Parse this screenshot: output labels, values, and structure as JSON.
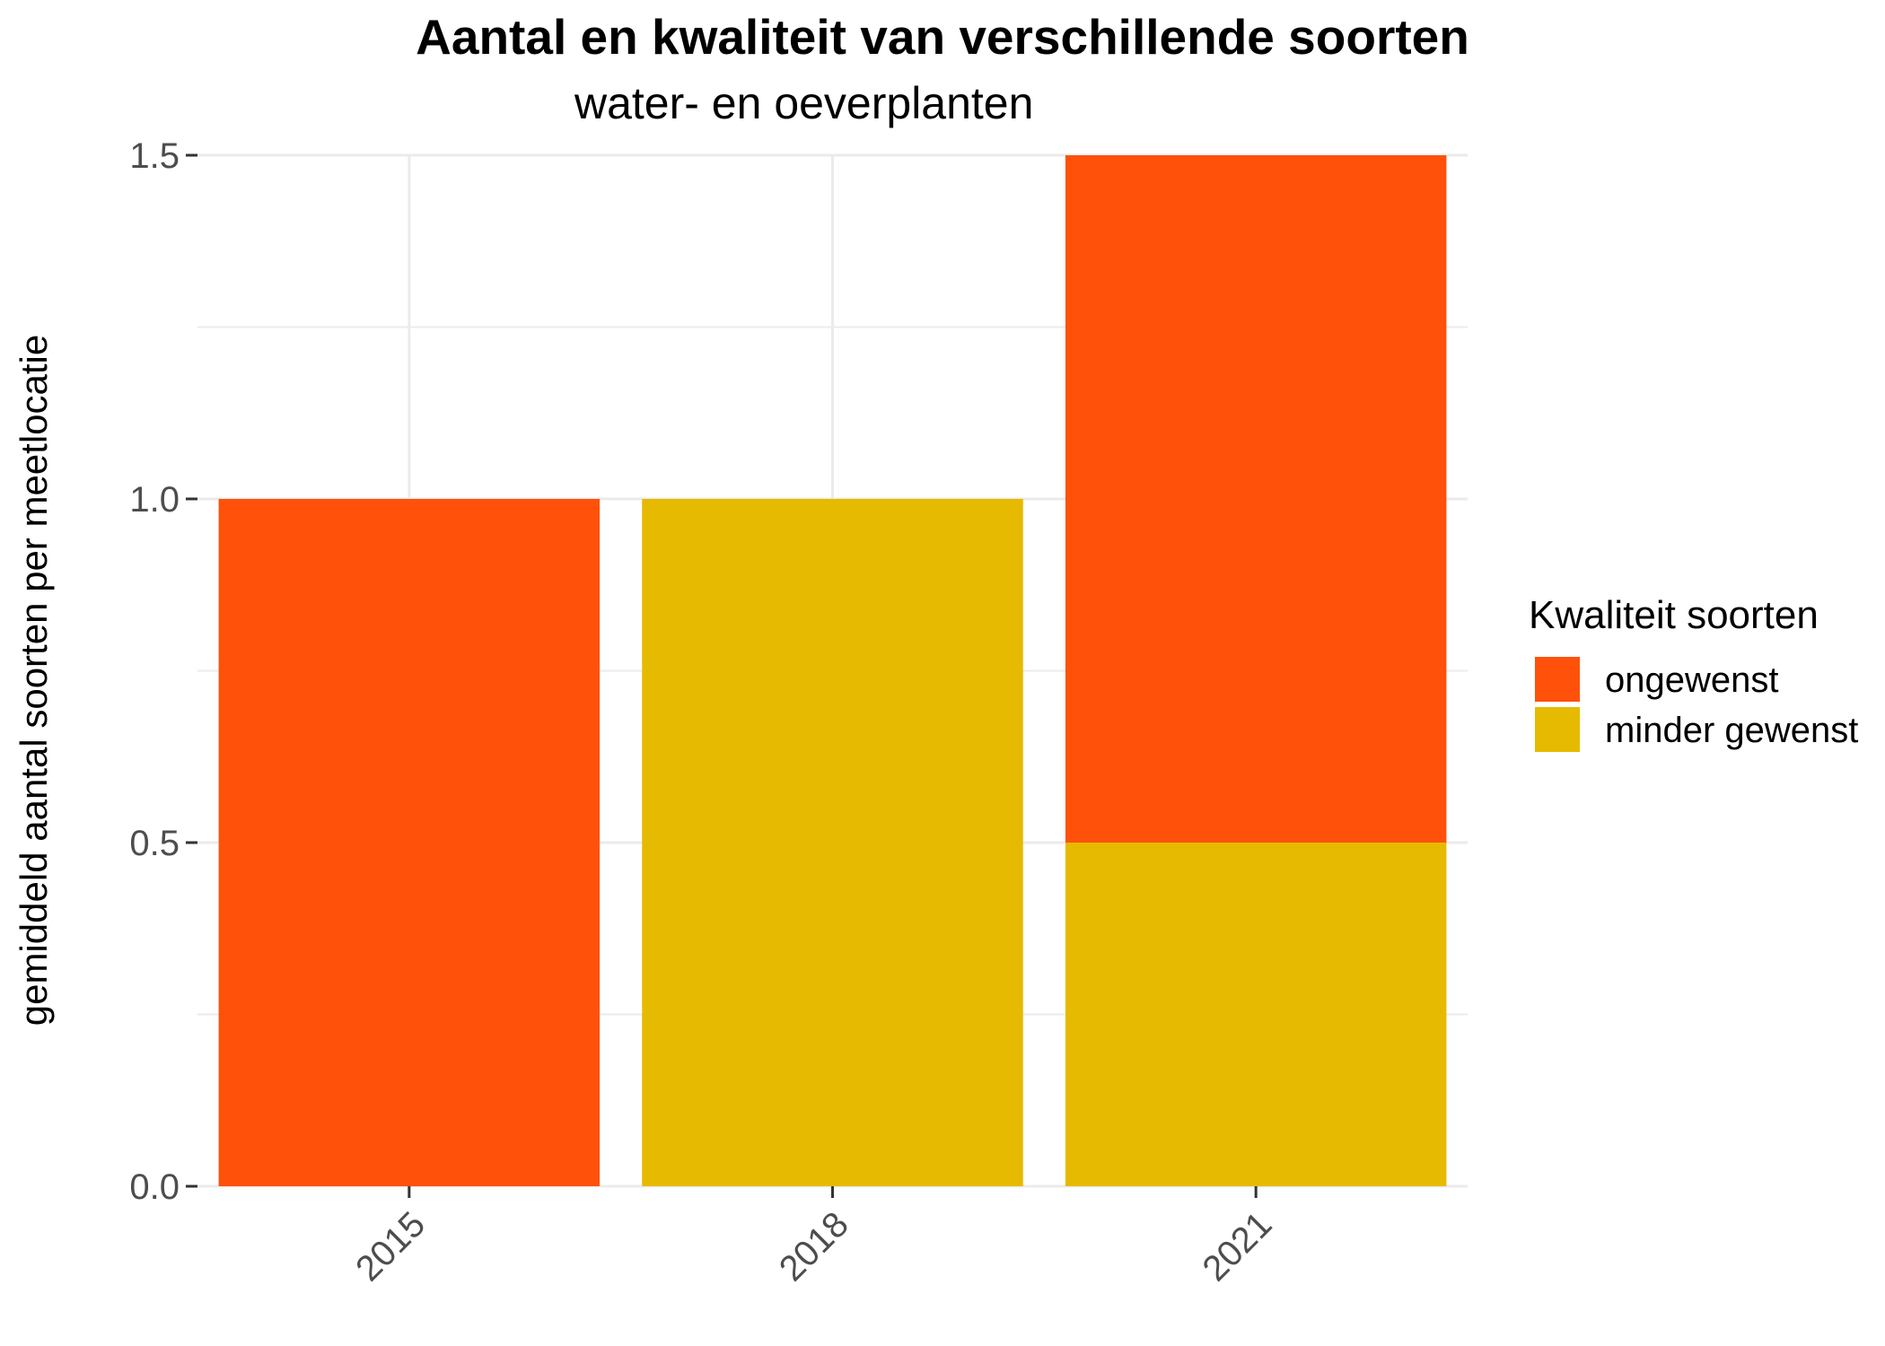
{
  "chart_data": {
    "type": "bar",
    "stacked": true,
    "title": "Aantal en kwaliteit van verschillende soorten",
    "subtitle": "water- en oeverplanten",
    "xlabel": "",
    "ylabel": "gemiddeld aantal soorten per meetlocatie",
    "categories": [
      "2015",
      "2018",
      "2021"
    ],
    "series": [
      {
        "name": "minder gewenst",
        "color": "#E6BA00",
        "values": [
          0,
          1.0,
          0.5
        ]
      },
      {
        "name": "ongewenst",
        "color": "#FF510A",
        "values": [
          1.0,
          0,
          1.0
        ]
      }
    ],
    "ylim": [
      0,
      1.5
    ],
    "yticks": [
      "0.0",
      "0.5",
      "1.0",
      "1.5"
    ],
    "ytick_values": [
      0,
      0.5,
      1.0,
      1.5
    ],
    "x_tick_rotation": 45,
    "grid": true,
    "legend": {
      "title": "Kwaliteit soorten",
      "placement": "right",
      "entries": [
        {
          "label": "ongewenst",
          "color": "#FF510A"
        },
        {
          "label": "minder gewenst",
          "color": "#E6BA00"
        }
      ]
    }
  }
}
